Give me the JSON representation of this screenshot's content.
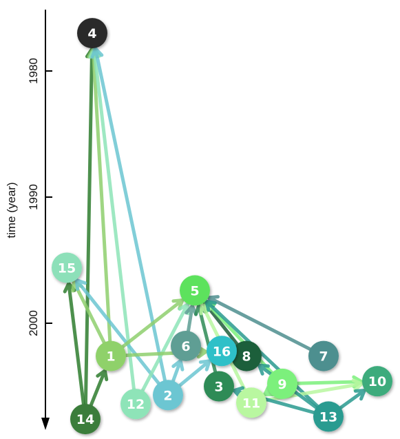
{
  "chart_data": {
    "type": "network",
    "ylabel": "time (year)",
    "y_ticks": [
      1980,
      1990,
      2000
    ],
    "ylim": [
      1976,
      2008
    ],
    "y_inverted": true,
    "nodes": [
      {
        "id": "1",
        "year": 2002.6,
        "color": "#8fd16b"
      },
      {
        "id": "2",
        "year": 2005.7,
        "color": "#6cc6d2"
      },
      {
        "id": "3",
        "year": 2005.0,
        "color": "#2e8b57"
      },
      {
        "id": "4",
        "year": 1977.0,
        "color": "#2b2b2b"
      },
      {
        "id": "5",
        "year": 1997.4,
        "color": "#5de25d"
      },
      {
        "id": "6",
        "year": 2001.8,
        "color": "#5e9e94"
      },
      {
        "id": "7",
        "year": 2002.6,
        "color": "#4e8f8f"
      },
      {
        "id": "8",
        "year": 2002.6,
        "color": "#1f5e3a"
      },
      {
        "id": "9",
        "year": 2004.8,
        "color": "#7cf07c"
      },
      {
        "id": "10",
        "year": 2004.6,
        "color": "#3cab7c"
      },
      {
        "id": "11",
        "year": 2006.3,
        "color": "#b9f7a0"
      },
      {
        "id": "12",
        "year": 2006.4,
        "color": "#8ee4b8"
      },
      {
        "id": "13",
        "year": 2007.4,
        "color": "#2a9b90"
      },
      {
        "id": "14",
        "year": 2007.6,
        "color": "#3b7d3b"
      },
      {
        "id": "15",
        "year": 1995.6,
        "color": "#8de0b9"
      },
      {
        "id": "16",
        "year": 2002.2,
        "color": "#2ec0c8"
      }
    ],
    "edges": [
      {
        "from": "14",
        "to": "4",
        "color": "#2f7d2f"
      },
      {
        "from": "1",
        "to": "4",
        "color": "#8fcf6e"
      },
      {
        "from": "12",
        "to": "4",
        "color": "#8ee4b8"
      },
      {
        "from": "2",
        "to": "4",
        "color": "#6cc6d2"
      },
      {
        "from": "14",
        "to": "15",
        "color": "#2f7d2f"
      },
      {
        "from": "1",
        "to": "15",
        "color": "#8fcf6e"
      },
      {
        "from": "2",
        "to": "15",
        "color": "#6cc6d2"
      },
      {
        "from": "14",
        "to": "1",
        "color": "#2f7d2f"
      },
      {
        "from": "1",
        "to": "5",
        "color": "#8fcf6e"
      },
      {
        "from": "12",
        "to": "5",
        "color": "#8ee4b8"
      },
      {
        "from": "6",
        "to": "5",
        "color": "#5e9e94"
      },
      {
        "from": "3",
        "to": "5",
        "color": "#2e8b57"
      },
      {
        "from": "8",
        "to": "5",
        "color": "#1f5e3a"
      },
      {
        "from": "7",
        "to": "5",
        "color": "#4e8f8f"
      },
      {
        "from": "9",
        "to": "5",
        "color": "#7cf07c"
      },
      {
        "from": "11",
        "to": "5",
        "color": "#b9f7a0"
      },
      {
        "from": "13",
        "to": "5",
        "color": "#2a9b90"
      },
      {
        "from": "1",
        "to": "16",
        "color": "#8fcf6e"
      },
      {
        "from": "2",
        "to": "6",
        "color": "#6cc6d2"
      },
      {
        "from": "2",
        "to": "16",
        "color": "#6cc6d2"
      },
      {
        "from": "9",
        "to": "10",
        "color": "#7cf07c"
      },
      {
        "from": "11",
        "to": "10",
        "color": "#b9f7a0"
      },
      {
        "from": "13",
        "to": "10",
        "color": "#2a9b90"
      },
      {
        "from": "13",
        "to": "8",
        "color": "#2a9b90"
      },
      {
        "from": "13",
        "to": "3",
        "color": "#2a9b90"
      },
      {
        "from": "9",
        "to": "11",
        "color": "#7cf07c"
      }
    ]
  }
}
